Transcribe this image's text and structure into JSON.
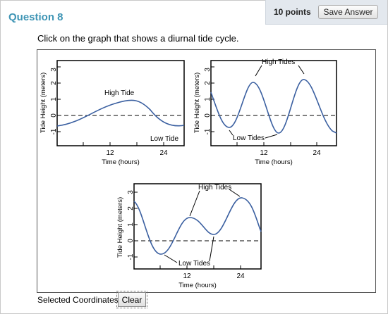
{
  "question": {
    "title": "Question 8",
    "points": "10 points",
    "save_label": "Save Answer"
  },
  "prompt": "Click on the graph that shows a diurnal tide cycle.",
  "graphs": {
    "ylabel": "Tide Height (meters)",
    "xlabel": "Time (hours)",
    "yticks": [
      "3",
      "2",
      "1",
      "0",
      "-1"
    ],
    "xticks": [
      "12",
      "24"
    ],
    "graph1": {
      "label_high": "High Tide",
      "label_low": "Low Tide"
    },
    "graph2": {
      "label_high": "High Tides",
      "label_low": "Low Tides"
    },
    "graph3": {
      "label_high": "High Tides",
      "label_low": "Low Tides"
    }
  },
  "footer": {
    "selected_label": "Selected Coordinates",
    "clear_label": "Clear"
  }
}
